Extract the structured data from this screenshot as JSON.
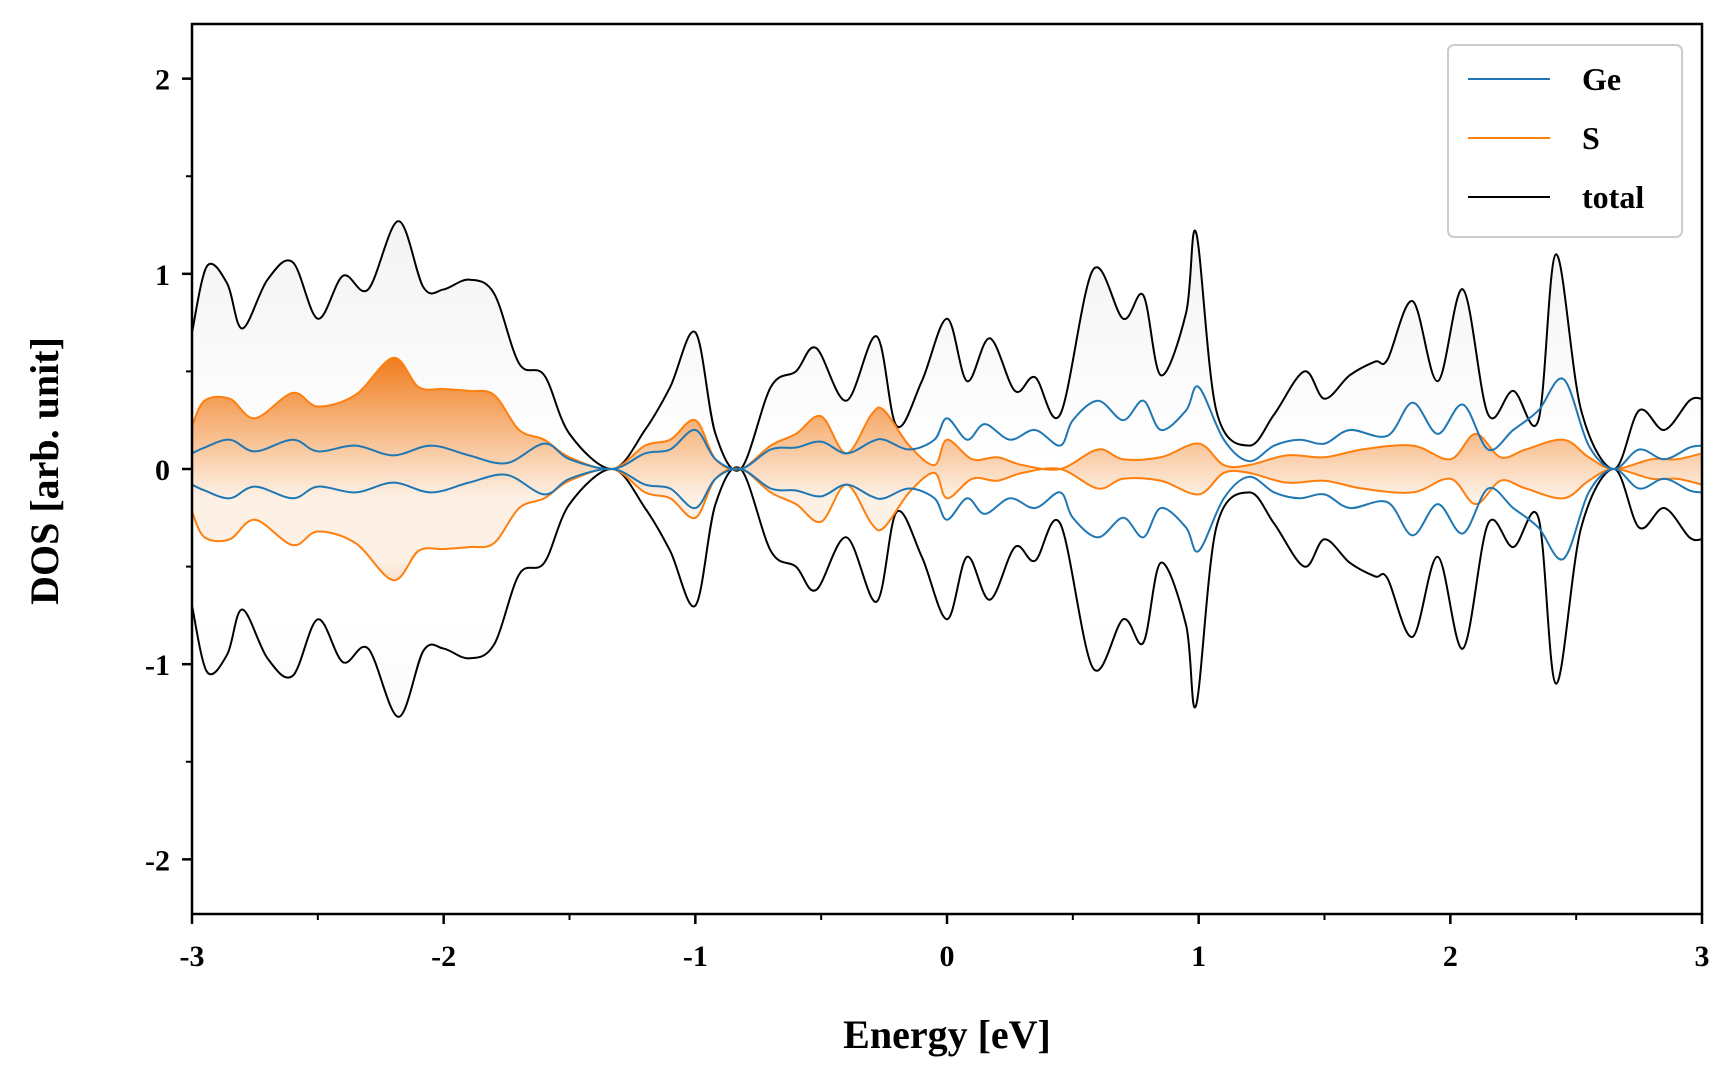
{
  "chart_data": {
    "type": "line",
    "xlabel": "Energy [eV]",
    "ylabel": "DOS [arb. unit]",
    "xlim": [
      -3,
      3
    ],
    "ylim": [
      -2.28,
      2.28
    ],
    "x_ticks": [
      -3,
      -2,
      -1,
      0,
      1,
      2,
      3
    ],
    "y_ticks": [
      -2,
      -1,
      0,
      1,
      2
    ],
    "grid": false,
    "legend_position": "top-right",
    "mirrored": true,
    "series": [
      {
        "name": "Ge",
        "color": "#1f77b4",
        "x": [
          -3.0,
          -2.95,
          -2.85,
          -2.75,
          -2.6,
          -2.5,
          -2.35,
          -2.2,
          -2.05,
          -1.9,
          -1.75,
          -1.6,
          -1.5,
          -1.33,
          -1.2,
          -1.1,
          -1.0,
          -0.92,
          -0.82,
          -0.7,
          -0.6,
          -0.5,
          -0.4,
          -0.3,
          -0.25,
          -0.15,
          -0.05,
          0.0,
          0.08,
          0.15,
          0.25,
          0.35,
          0.45,
          0.5,
          0.6,
          0.7,
          0.78,
          0.85,
          0.95,
          1.0,
          1.1,
          1.2,
          1.3,
          1.4,
          1.5,
          1.6,
          1.75,
          1.85,
          1.95,
          2.05,
          2.15,
          2.25,
          2.35,
          2.45,
          2.55,
          2.65,
          2.75,
          2.85,
          2.95,
          3.0
        ],
        "y": [
          0.08,
          0.11,
          0.15,
          0.09,
          0.15,
          0.09,
          0.12,
          0.07,
          0.12,
          0.07,
          0.03,
          0.13,
          0.05,
          0.0,
          0.08,
          0.1,
          0.2,
          0.05,
          0.0,
          0.1,
          0.11,
          0.14,
          0.08,
          0.14,
          0.15,
          0.1,
          0.15,
          0.26,
          0.15,
          0.23,
          0.15,
          0.2,
          0.12,
          0.25,
          0.35,
          0.25,
          0.35,
          0.2,
          0.3,
          0.42,
          0.15,
          0.04,
          0.12,
          0.15,
          0.13,
          0.2,
          0.17,
          0.34,
          0.18,
          0.33,
          0.1,
          0.2,
          0.3,
          0.46,
          0.12,
          0.0,
          0.1,
          0.05,
          0.11,
          0.12
        ]
      },
      {
        "name": "S",
        "color": "#ff7f0e",
        "x": [
          -3.0,
          -2.95,
          -2.85,
          -2.75,
          -2.6,
          -2.5,
          -2.35,
          -2.2,
          -2.1,
          -2.0,
          -1.9,
          -1.8,
          -1.7,
          -1.6,
          -1.5,
          -1.33,
          -1.2,
          -1.1,
          -1.0,
          -0.92,
          -0.82,
          -0.7,
          -0.6,
          -0.5,
          -0.4,
          -0.3,
          -0.25,
          -0.15,
          -0.05,
          0.0,
          0.1,
          0.2,
          0.3,
          0.45,
          0.6,
          0.7,
          0.85,
          1.0,
          1.1,
          1.2,
          1.35,
          1.5,
          1.65,
          1.85,
          2.0,
          2.1,
          2.2,
          2.3,
          2.45,
          2.55,
          2.65,
          2.8,
          2.9,
          3.0
        ],
        "y": [
          0.22,
          0.35,
          0.36,
          0.26,
          0.39,
          0.32,
          0.38,
          0.57,
          0.42,
          0.41,
          0.4,
          0.38,
          0.2,
          0.15,
          0.06,
          0.0,
          0.12,
          0.15,
          0.25,
          0.05,
          0.0,
          0.12,
          0.18,
          0.27,
          0.08,
          0.28,
          0.3,
          0.12,
          0.02,
          0.15,
          0.05,
          0.06,
          0.02,
          0.0,
          0.1,
          0.05,
          0.06,
          0.13,
          0.02,
          0.02,
          0.07,
          0.06,
          0.1,
          0.12,
          0.05,
          0.18,
          0.06,
          0.1,
          0.15,
          0.06,
          0.0,
          0.05,
          0.05,
          0.08
        ]
      },
      {
        "name": "total",
        "color": "#000000",
        "x": [
          -3.0,
          -2.94,
          -2.86,
          -2.8,
          -2.7,
          -2.6,
          -2.5,
          -2.4,
          -2.3,
          -2.18,
          -2.08,
          -2.0,
          -1.9,
          -1.8,
          -1.7,
          -1.6,
          -1.5,
          -1.33,
          -1.2,
          -1.1,
          -1.0,
          -0.92,
          -0.82,
          -0.7,
          -0.6,
          -0.52,
          -0.4,
          -0.28,
          -0.2,
          -0.1,
          0.0,
          0.08,
          0.17,
          0.27,
          0.35,
          0.45,
          0.58,
          0.7,
          0.78,
          0.85,
          0.95,
          0.99,
          1.07,
          1.2,
          1.3,
          1.42,
          1.5,
          1.6,
          1.7,
          1.75,
          1.85,
          1.95,
          2.05,
          2.15,
          2.25,
          2.35,
          2.42,
          2.52,
          2.65,
          2.75,
          2.85,
          2.95,
          3.0
        ],
        "y": [
          0.7,
          1.04,
          0.95,
          0.72,
          0.97,
          1.06,
          0.77,
          0.99,
          0.92,
          1.27,
          0.93,
          0.92,
          0.97,
          0.9,
          0.54,
          0.48,
          0.18,
          0.0,
          0.2,
          0.42,
          0.7,
          0.18,
          0.0,
          0.42,
          0.5,
          0.62,
          0.35,
          0.68,
          0.22,
          0.45,
          0.77,
          0.45,
          0.67,
          0.4,
          0.47,
          0.28,
          1.02,
          0.77,
          0.89,
          0.48,
          0.8,
          1.21,
          0.3,
          0.12,
          0.28,
          0.5,
          0.36,
          0.48,
          0.55,
          0.56,
          0.86,
          0.45,
          0.92,
          0.28,
          0.4,
          0.25,
          1.1,
          0.3,
          0.0,
          0.3,
          0.2,
          0.35,
          0.36
        ]
      }
    ]
  }
}
